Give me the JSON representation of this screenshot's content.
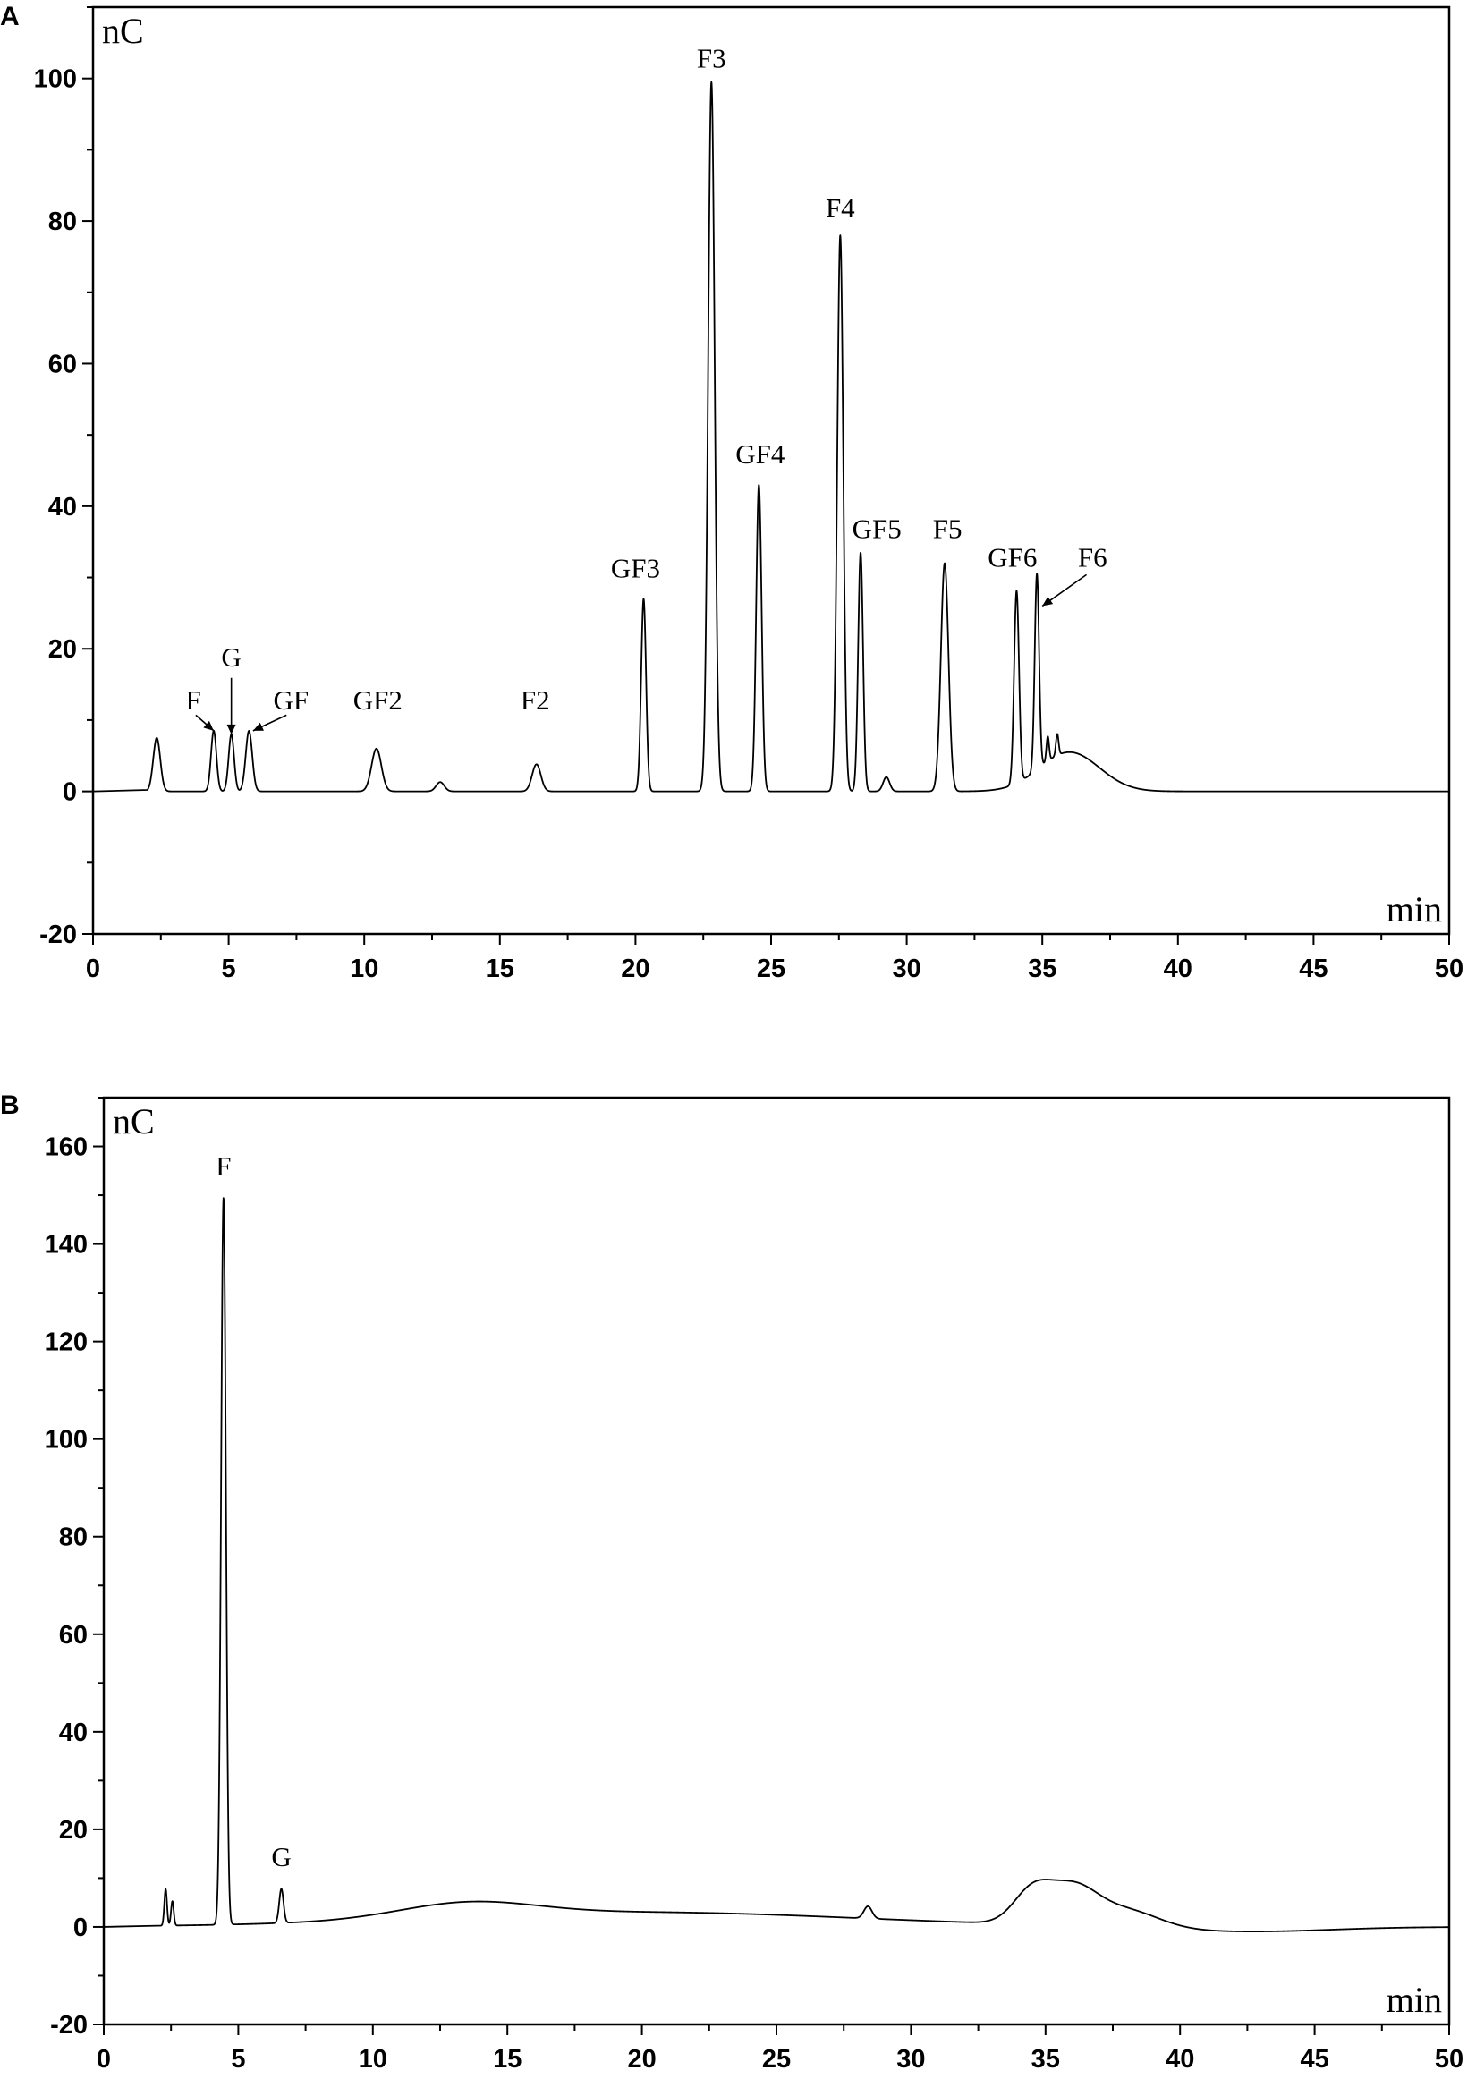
{
  "chart_data": [
    {
      "panel": "A",
      "type": "line",
      "ylabel": "nC",
      "xlabel": "min",
      "xlim": [
        0,
        50
      ],
      "ylim": [
        -20,
        110
      ],
      "xticks": [
        0,
        5,
        10,
        15,
        20,
        25,
        30,
        35,
        40,
        45,
        50
      ],
      "yticks": [
        -20,
        0,
        20,
        40,
        60,
        80,
        100
      ],
      "grid": false,
      "trace": {
        "peaks": [
          {
            "t": 2.35,
            "h": 7.5,
            "w": 0.13
          },
          {
            "t": 4.45,
            "h": 8.5,
            "w": 0.1
          },
          {
            "t": 5.1,
            "h": 8.0,
            "w": 0.1
          },
          {
            "t": 5.75,
            "h": 8.5,
            "w": 0.12
          },
          {
            "t": 10.45,
            "h": 6.0,
            "w": 0.18
          },
          {
            "t": 12.8,
            "h": 1.3,
            "w": 0.15
          },
          {
            "t": 16.35,
            "h": 3.8,
            "w": 0.16
          },
          {
            "t": 20.3,
            "h": 27.0,
            "w": 0.09
          },
          {
            "t": 22.8,
            "h": 99.5,
            "w": 0.12
          },
          {
            "t": 24.55,
            "h": 43.0,
            "w": 0.1
          },
          {
            "t": 27.55,
            "h": 78.0,
            "w": 0.11
          },
          {
            "t": 28.3,
            "h": 33.5,
            "w": 0.09
          },
          {
            "t": 29.25,
            "h": 2.0,
            "w": 0.12
          },
          {
            "t": 31.4,
            "h": 32.0,
            "w": 0.14
          },
          {
            "t": 34.05,
            "h": 27.0,
            "w": 0.09
          },
          {
            "t": 34.8,
            "h": 27.5,
            "w": 0.08
          },
          {
            "t": 35.2,
            "h": 3.5,
            "w": 0.05
          },
          {
            "t": 35.55,
            "h": 3.0,
            "w": 0.05
          }
        ],
        "baseline_bumps": [
          {
            "t": 36.0,
            "h": 5.5,
            "w": 1.1
          }
        ]
      },
      "peak_labels": [
        {
          "text": "F",
          "t": 3.7,
          "y": 11.5,
          "arrow_to": [
            4.45,
            8.5
          ]
        },
        {
          "text": "G",
          "t": 5.1,
          "y": 17.5,
          "arrow_to": [
            5.1,
            8.0
          ]
        },
        {
          "text": "GF",
          "t": 7.3,
          "y": 11.5,
          "arrow_to": [
            5.9,
            8.5
          ]
        },
        {
          "text": "GF2",
          "t": 10.5,
          "y": 11.5
        },
        {
          "text": "F2",
          "t": 16.3,
          "y": 11.5
        },
        {
          "text": "GF3",
          "t": 20.0,
          "y": 30.0
        },
        {
          "text": "F3",
          "t": 22.8,
          "y": 101.5
        },
        {
          "text": "GF4",
          "t": 24.6,
          "y": 46.0
        },
        {
          "text": "F4",
          "t": 27.55,
          "y": 80.5
        },
        {
          "text": "GF5",
          "t": 28.9,
          "y": 35.5
        },
        {
          "text": "F5",
          "t": 31.5,
          "y": 35.5
        },
        {
          "text": "GF6",
          "t": 33.9,
          "y": 31.5
        },
        {
          "text": "F6",
          "t": 36.85,
          "y": 31.5,
          "arrow_to": [
            35.0,
            26.0
          ]
        }
      ]
    },
    {
      "panel": "B",
      "type": "line",
      "ylabel": "nC",
      "xlabel": "min",
      "xlim": [
        0,
        50
      ],
      "ylim": [
        -20,
        170
      ],
      "xticks": [
        0,
        5,
        10,
        15,
        20,
        25,
        30,
        35,
        40,
        45,
        50
      ],
      "yticks": [
        -20,
        0,
        20,
        40,
        60,
        80,
        100,
        120,
        140,
        160
      ],
      "grid": false,
      "trace": {
        "peaks": [
          {
            "t": 2.3,
            "h": 7.5,
            "w": 0.05
          },
          {
            "t": 2.55,
            "h": 5.0,
            "w": 0.05
          },
          {
            "t": 4.45,
            "h": 149.0,
            "w": 0.09
          },
          {
            "t": 6.6,
            "h": 7.0,
            "w": 0.08
          },
          {
            "t": 28.4,
            "h": 2.5,
            "w": 0.15
          }
        ],
        "baseline_bumps": [
          {
            "t": 13.5,
            "h": 3.0,
            "w": 2.5
          },
          {
            "t": 20.0,
            "h": 3.0,
            "w": 8.0
          },
          {
            "t": 34.5,
            "h": 6.5,
            "w": 0.7
          },
          {
            "t": 36.0,
            "h": 7.5,
            "w": 0.9
          },
          {
            "t": 38.0,
            "h": 3.5,
            "w": 1.2
          },
          {
            "t": 42.5,
            "h": -1.0,
            "w": 3.0
          }
        ]
      },
      "peak_labels": [
        {
          "text": "F",
          "t": 4.45,
          "y": 154.0
        },
        {
          "text": "G",
          "t": 6.6,
          "y": 12.5
        }
      ]
    }
  ]
}
